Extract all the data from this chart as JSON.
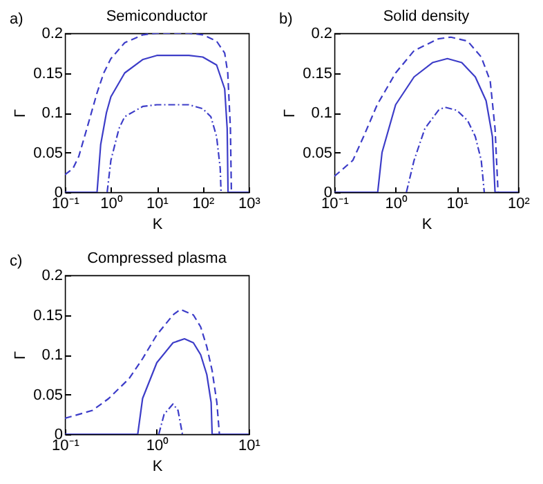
{
  "chart_data": [
    {
      "type": "line",
      "title": "Semiconductor",
      "xlabel": "K",
      "ylabel": "Γ",
      "annotations": [
        "a)"
      ],
      "log": "x",
      "xlim": [
        0.1,
        1000
      ],
      "ylim": [
        0,
        0.2
      ],
      "xticks": [
        {
          "value": 0.1,
          "label": "10⁻¹"
        },
        {
          "value": 1,
          "label": "10⁰"
        },
        {
          "value": 10,
          "label": "10¹"
        },
        {
          "value": 100,
          "label": "10²"
        },
        {
          "value": 1000,
          "label": "10³"
        }
      ],
      "yticks": [
        0,
        0.05,
        0.1,
        0.15,
        0.2
      ],
      "grid": false,
      "series": [
        {
          "color": "#3c3cc8",
          "line_style": "dashed",
          "x": [
            0.1,
            0.15,
            0.2,
            0.3,
            0.5,
            0.7,
            1,
            2,
            5,
            10,
            50,
            100,
            200,
            300,
            350,
            400,
            420,
            1000
          ],
          "values": [
            0.022,
            0.03,
            0.045,
            0.08,
            0.125,
            0.15,
            0.168,
            0.188,
            0.198,
            0.2,
            0.2,
            0.198,
            0.19,
            0.175,
            0.15,
            0.08,
            0,
            0
          ]
        },
        {
          "color": "#3c3cc8",
          "line_style": "solid",
          "x": [
            0.1,
            0.5,
            0.6,
            0.8,
            1,
            2,
            5,
            10,
            50,
            100,
            200,
            300,
            340,
            355,
            1000
          ],
          "values": [
            0,
            0,
            0.06,
            0.1,
            0.12,
            0.15,
            0.167,
            0.172,
            0.172,
            0.17,
            0.16,
            0.13,
            0.08,
            0,
            0
          ]
        },
        {
          "color": "#3c3cc8",
          "line_style": "dashdot",
          "x": [
            0.83,
            1,
            1.5,
            2,
            5,
            10,
            50,
            100,
            150,
            200,
            240,
            250
          ],
          "values": [
            0,
            0.04,
            0.08,
            0.095,
            0.108,
            0.11,
            0.11,
            0.105,
            0.095,
            0.07,
            0.03,
            0
          ]
        }
      ]
    },
    {
      "type": "line",
      "title": "Solid density",
      "xlabel": "K",
      "ylabel": "Γ",
      "annotations": [
        "b)"
      ],
      "log": "x",
      "xlim": [
        0.1,
        100
      ],
      "ylim": [
        0,
        0.2
      ],
      "xticks": [
        {
          "value": 0.1,
          "label": "10⁻¹"
        },
        {
          "value": 1,
          "label": "10⁰"
        },
        {
          "value": 10,
          "label": "10¹"
        },
        {
          "value": 100,
          "label": "10²"
        }
      ],
      "yticks": [
        0,
        0.05,
        0.1,
        0.15,
        0.2
      ],
      "grid": false,
      "series": [
        {
          "color": "#3c3cc8",
          "line_style": "dashed",
          "x": [
            0.1,
            0.2,
            0.3,
            0.5,
            1,
            2,
            5,
            8,
            15,
            25,
            35,
            42,
            47,
            100
          ],
          "values": [
            0.02,
            0.04,
            0.07,
            0.11,
            0.15,
            0.178,
            0.193,
            0.195,
            0.19,
            0.17,
            0.14,
            0.08,
            0,
            0
          ]
        },
        {
          "color": "#3c3cc8",
          "line_style": "solid",
          "x": [
            0.1,
            0.51,
            0.6,
            1,
            2,
            4,
            7,
            12,
            20,
            30,
            38,
            42,
            100
          ],
          "values": [
            0,
            0,
            0.05,
            0.11,
            0.145,
            0.163,
            0.168,
            0.163,
            0.145,
            0.115,
            0.07,
            0,
            0
          ]
        },
        {
          "color": "#3c3cc8",
          "line_style": "dashdot",
          "x": [
            1.5,
            2,
            3,
            5,
            6.3,
            10,
            15,
            20,
            25,
            28
          ],
          "values": [
            0,
            0.04,
            0.08,
            0.103,
            0.107,
            0.103,
            0.09,
            0.07,
            0.04,
            0
          ]
        }
      ]
    },
    {
      "type": "line",
      "title": "Compressed plasma",
      "xlabel": "K",
      "ylabel": "Γ",
      "annotations": [
        "c)"
      ],
      "log": "x",
      "xlim": [
        0.1,
        10
      ],
      "ylim": [
        0,
        0.2
      ],
      "xticks": [
        {
          "value": 0.1,
          "label": "10⁻¹"
        },
        {
          "value": 1,
          "label": "10⁰"
        },
        {
          "value": 10,
          "label": "10¹"
        }
      ],
      "yticks": [
        0,
        0.05,
        0.1,
        0.15,
        0.2
      ],
      "grid": false,
      "series": [
        {
          "color": "#3c3cc8",
          "line_style": "dashed",
          "x": [
            0.1,
            0.2,
            0.3,
            0.5,
            0.7,
            1,
            1.5,
            1.8,
            2.5,
            3,
            3.5,
            4,
            4.5,
            4.8,
            10
          ],
          "values": [
            0.02,
            0.03,
            0.045,
            0.07,
            0.095,
            0.125,
            0.15,
            0.157,
            0.15,
            0.135,
            0.11,
            0.08,
            0.04,
            0,
            0
          ]
        },
        {
          "color": "#3c3cc8",
          "line_style": "solid",
          "x": [
            0.1,
            0.62,
            0.7,
            1,
            1.5,
            2,
            2.5,
            3,
            3.5,
            3.9,
            4,
            10
          ],
          "values": [
            0,
            0,
            0.045,
            0.09,
            0.115,
            0.12,
            0.115,
            0.1,
            0.075,
            0.04,
            0,
            0
          ]
        },
        {
          "color": "#3c3cc8",
          "line_style": "dashdot",
          "x": [
            1.05,
            1.2,
            1.5,
            1.7,
            1.9
          ],
          "values": [
            0,
            0.025,
            0.038,
            0.03,
            0
          ]
        }
      ]
    }
  ]
}
